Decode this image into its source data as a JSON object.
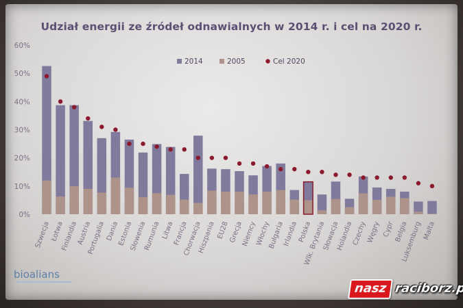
{
  "chart_data": {
    "type": "bar",
    "title": "Udział energii ze źródeł odnawialnych w 2014 r. i cel na 2020 r.",
    "yticks": [
      "0%",
      "10%",
      "20%",
      "30%",
      "40%",
      "50%",
      "60%"
    ],
    "ylim": [
      0,
      60
    ],
    "legend": {
      "placement": "top-center",
      "entries": [
        "2014",
        "2005",
        "Cel 2020"
      ]
    },
    "categories": [
      "Szwecja",
      "Łotwa",
      "Finlandia",
      "Austria",
      "Portugalia",
      "Dania",
      "Estonia",
      "Słowenia",
      "Rumunia",
      "Litwa",
      "Francja",
      "Chorwacja",
      "Hiszpania",
      "EU28",
      "Grecja",
      "Niemcy",
      "Włochy",
      "Bułgaria",
      "Irlandia",
      "Polska",
      "Wlk. Brytania",
      "Słowacja",
      "Holandia",
      "Czechy",
      "Węgry",
      "Cypr",
      "Belgia",
      "Luksemburg",
      "Malta"
    ],
    "series": [
      {
        "name": "2014",
        "values": [
          52.6,
          38.7,
          38.7,
          33.1,
          27.0,
          29.2,
          26.5,
          21.9,
          24.9,
          23.9,
          14.3,
          27.9,
          16.2,
          16.0,
          15.3,
          13.8,
          17.1,
          18.0,
          8.6,
          11.5,
          7.0,
          11.6,
          5.5,
          13.4,
          9.5,
          9.0,
          8.0,
          4.5,
          4.7
        ]
      },
      {
        "name": "2005",
        "values": [
          12.0,
          6.3,
          10.0,
          9.0,
          7.7,
          13.0,
          9.4,
          6.1,
          7.5,
          6.9,
          5.2,
          4.0,
          8.4,
          8.0,
          8.0,
          7.0,
          8.0,
          8.6,
          5.2,
          5.0,
          1.4,
          5.4,
          2.5,
          7.4,
          5.1,
          6.2,
          5.7,
          0.9,
          0.2
        ]
      },
      {
        "name": "Cel 2020",
        "values": [
          49,
          40,
          38,
          34,
          31,
          30,
          25,
          25,
          24,
          23,
          23,
          20,
          20,
          20,
          18,
          18,
          17,
          16,
          16,
          15,
          15,
          14,
          14,
          13,
          13,
          13,
          13,
          11,
          10
        ]
      }
    ],
    "highlight_category": "Polska",
    "colors": {
      "bar_2014": "#807a9d",
      "bar_2005": "#ad938a",
      "cel_2020": "#8b1a2c",
      "highlight_border": "#8b1a2c",
      "axis_text": "#7b6f86",
      "title": "#5b4f73"
    }
  },
  "branding": {
    "logo_text": "bioalians",
    "badge_left": "nasz",
    "badge_right": "raciborz.pl"
  }
}
